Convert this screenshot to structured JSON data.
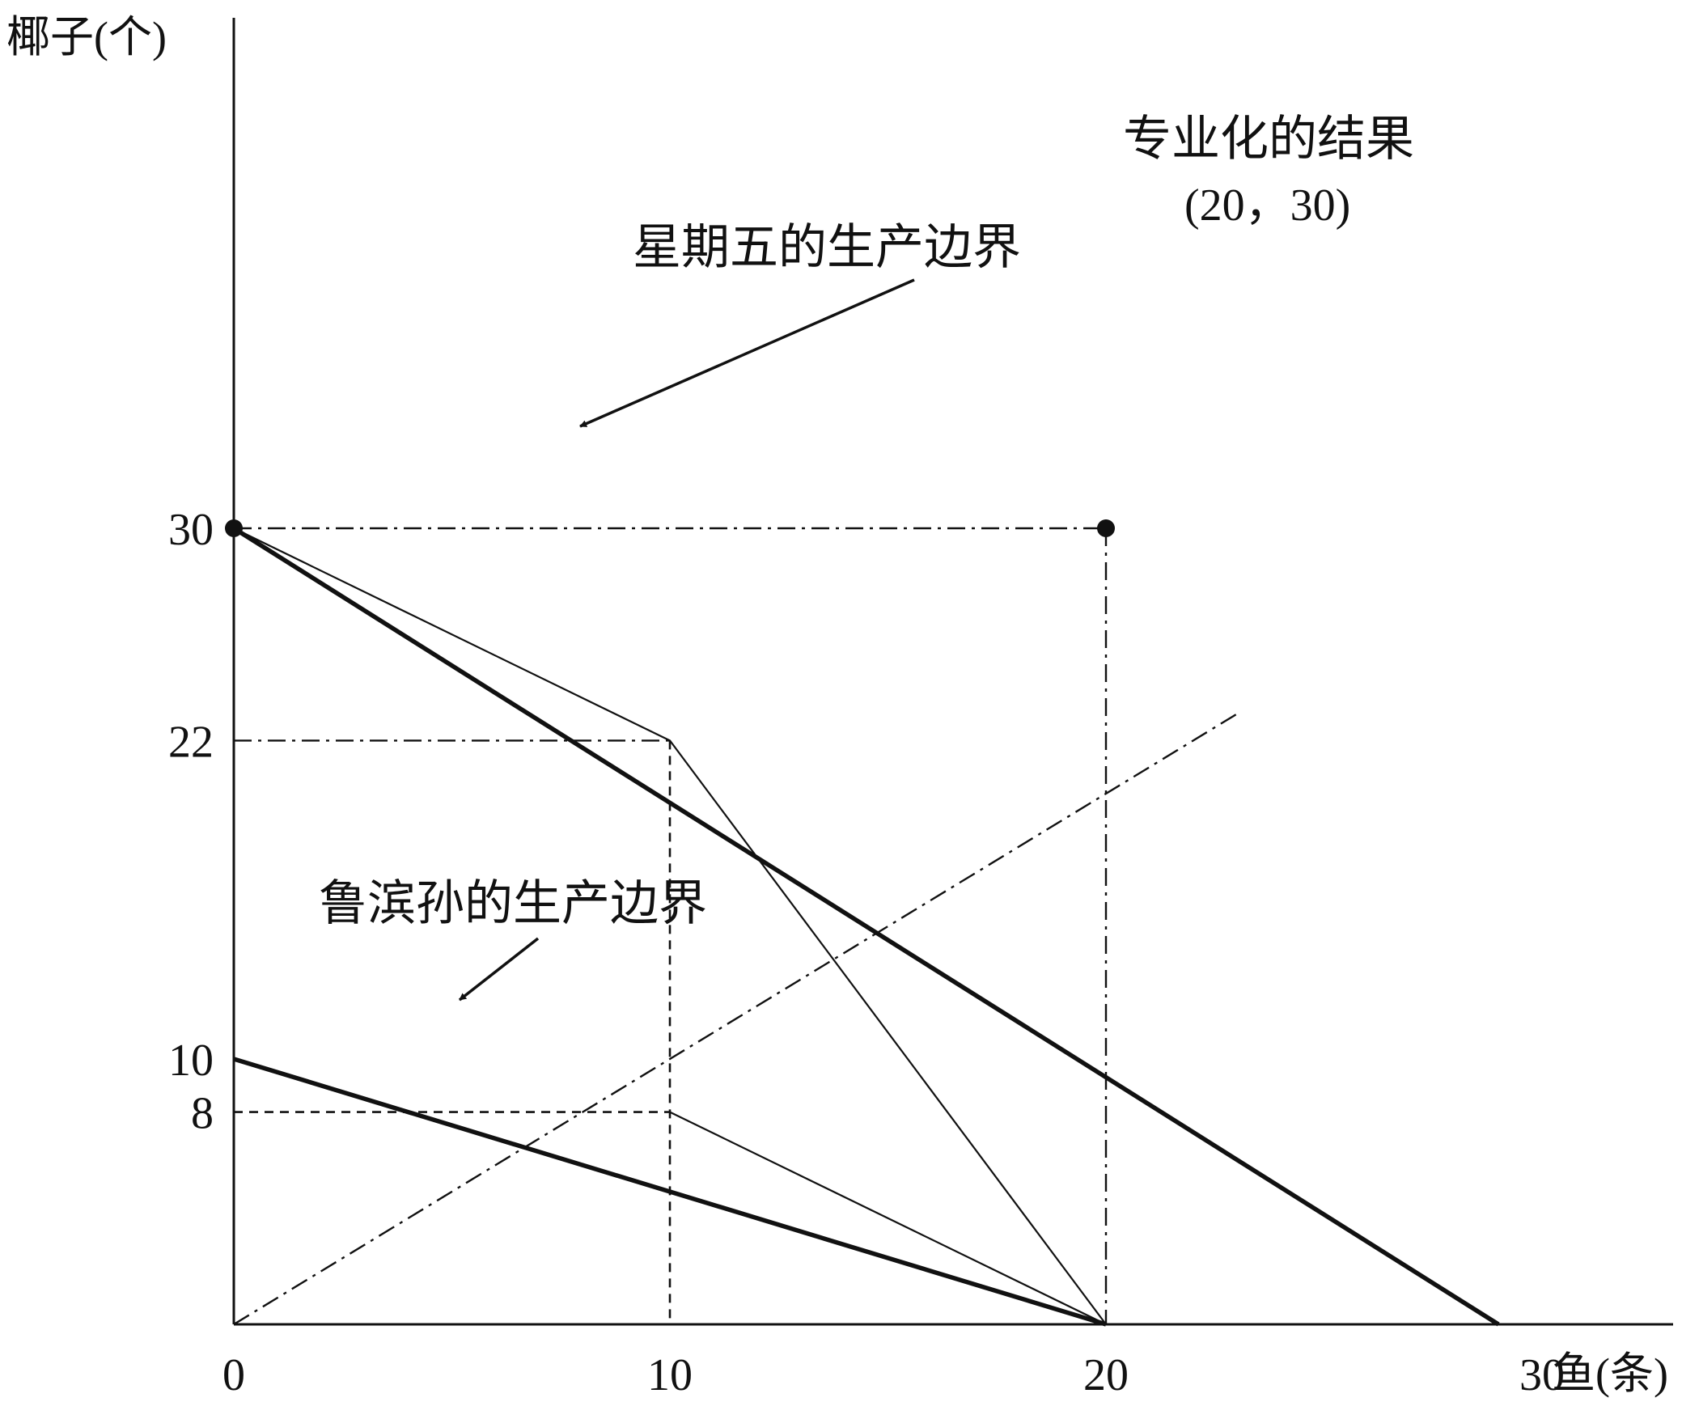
{
  "chart_data": {
    "type": "line",
    "ylabel": "椰子(个)",
    "xlabel": "鱼(条)",
    "xlim": [
      0,
      33
    ],
    "ylim": [
      0,
      32
    ],
    "x_ticks": [
      "0",
      "10",
      "20",
      "30"
    ],
    "y_ticks": [
      "30",
      "22",
      "10",
      "8"
    ],
    "grid": false,
    "colors": {
      "ink": "#111111",
      "background": "#ffffff"
    },
    "series": [
      {
        "name": "星期五的生产边界",
        "style": "thick-solid",
        "points": [
          [
            0,
            30
          ],
          [
            29,
            0
          ]
        ]
      },
      {
        "name": "鲁滨孙的生产边界",
        "style": "thick-solid",
        "points": [
          [
            0,
            10
          ],
          [
            20,
            0
          ]
        ]
      },
      {
        "style": "thin-solid",
        "points": [
          [
            0,
            30
          ],
          [
            10,
            22
          ],
          [
            20,
            0
          ]
        ]
      },
      {
        "style": "thin-solid",
        "points": [
          [
            10,
            8
          ],
          [
            20,
            0
          ]
        ]
      },
      {
        "style": "dash-dot",
        "points": [
          [
            0,
            0
          ],
          [
            23,
            23
          ]
        ]
      }
    ],
    "reference_lines": [
      {
        "style": "dash-dot",
        "points": [
          [
            0,
            30
          ],
          [
            20,
            30
          ]
        ]
      },
      {
        "style": "dash-dot",
        "points": [
          [
            20,
            30
          ],
          [
            20,
            0
          ]
        ]
      },
      {
        "style": "dash-dot",
        "points": [
          [
            0,
            22
          ],
          [
            10,
            22
          ]
        ]
      },
      {
        "style": "dashed",
        "points": [
          [
            10,
            22
          ],
          [
            10,
            0
          ]
        ]
      },
      {
        "style": "dashed",
        "points": [
          [
            0,
            8
          ],
          [
            10,
            8
          ]
        ]
      }
    ],
    "points": [
      {
        "x": 0,
        "y": 30
      },
      {
        "x": 20,
        "y": 30
      }
    ],
    "annotations": [
      {
        "text": "专业化的结果",
        "role": "specialization-label"
      },
      {
        "text": "(20，30)",
        "role": "specialization-coords"
      },
      {
        "text": "星期五的生产边界",
        "role": "friday-label",
        "arrow_to": [
          8,
          21
        ]
      },
      {
        "text": "鲁滨孙的生产边界",
        "role": "robinson-label",
        "arrow_to": [
          5,
          7.6
        ]
      }
    ]
  }
}
